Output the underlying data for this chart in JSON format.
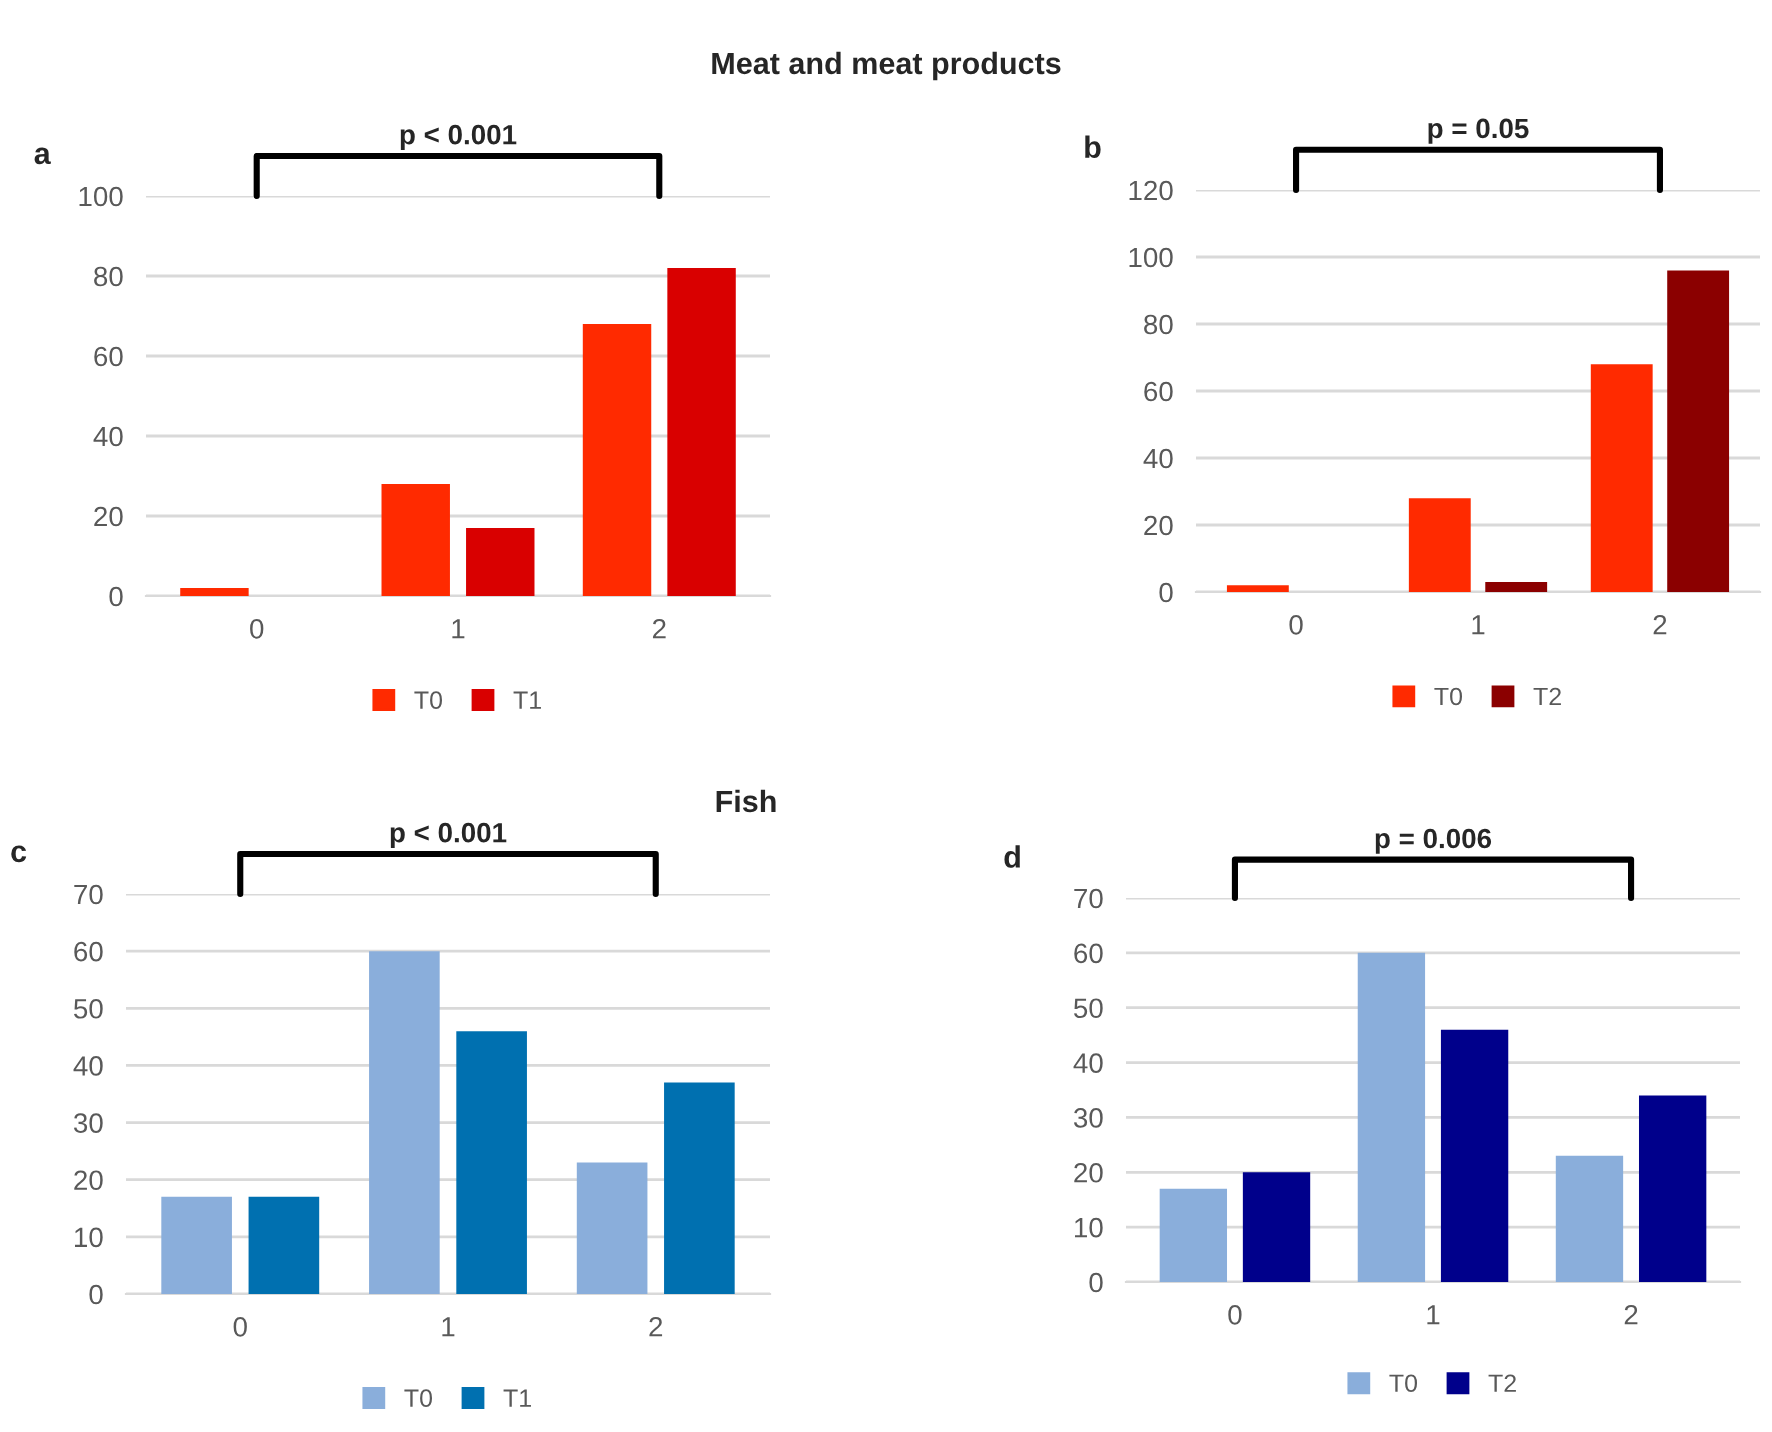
{
  "chart_data": [
    {
      "type": "bar",
      "title": "Meat and meat products",
      "categories": [
        "0",
        "1",
        "2"
      ],
      "series": [
        {
          "name": "T0",
          "color": "#ff2a00",
          "values": [
            2,
            28,
            68
          ]
        },
        {
          "name": "T1",
          "color": "#d90000",
          "values": [
            null,
            17,
            82
          ]
        }
      ],
      "ylim": [
        0,
        100
      ],
      "yticks": [
        0,
        20,
        40,
        60,
        80,
        100
      ],
      "grid": "y",
      "legend": "bottom",
      "annotations": [
        "a",
        "p < 0.001"
      ]
    },
    {
      "type": "bar",
      "categories": [
        "0",
        "1",
        "2"
      ],
      "series": [
        {
          "name": "T0",
          "color": "#ff2a00",
          "values": [
            2,
            28,
            68
          ]
        },
        {
          "name": "T2",
          "color": "#8b0000",
          "values": [
            null,
            3,
            96
          ]
        }
      ],
      "ylim": [
        0,
        120
      ],
      "yticks": [
        0,
        20,
        40,
        60,
        80,
        100,
        120
      ],
      "grid": "y",
      "legend": "bottom",
      "annotations": [
        "b",
        "p = 0.05"
      ]
    },
    {
      "type": "bar",
      "title": "Fish",
      "categories": [
        "0",
        "1",
        "2"
      ],
      "series": [
        {
          "name": "T0",
          "color": "#8aaedb",
          "values": [
            17,
            60,
            23
          ]
        },
        {
          "name": "T1",
          "color": "#0070b0",
          "values": [
            17,
            46,
            37
          ]
        }
      ],
      "ylim": [
        0,
        70
      ],
      "yticks": [
        0,
        10,
        20,
        30,
        40,
        50,
        60,
        70
      ],
      "grid": "y",
      "legend": "bottom",
      "annotations": [
        "c",
        "p < 0.001"
      ]
    },
    {
      "type": "bar",
      "categories": [
        "0",
        "1",
        "2"
      ],
      "series": [
        {
          "name": "T0",
          "color": "#8aaedb",
          "values": [
            17,
            60,
            23
          ]
        },
        {
          "name": "T2",
          "color": "#00008b",
          "values": [
            20,
            46,
            34
          ]
        }
      ],
      "ylim": [
        0,
        70
      ],
      "yticks": [
        0,
        10,
        20,
        30,
        40,
        50,
        60,
        70
      ],
      "grid": "y",
      "legend": "bottom",
      "annotations": [
        "d",
        "p = 0.006"
      ]
    }
  ]
}
